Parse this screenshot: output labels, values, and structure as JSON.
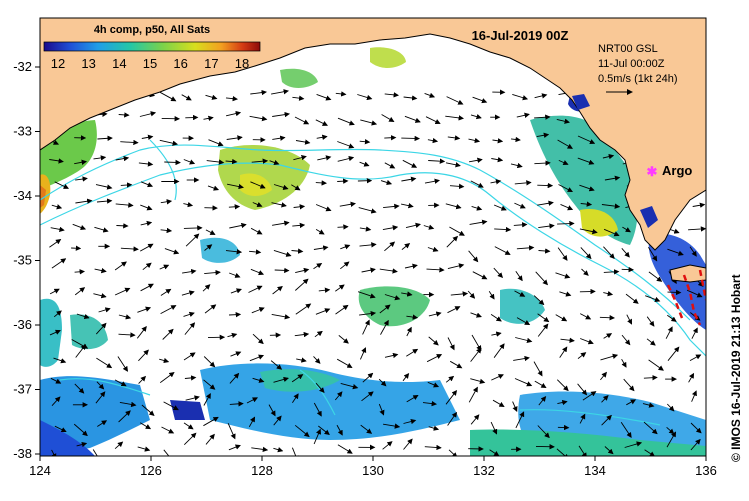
{
  "map": {
    "title": "16-Jul-2019 00Z",
    "credit": "© IMOS 16-Jul-2019 21:13 Hobart",
    "land_color": "#f9c896",
    "current_line_color": "#3cd6e6",
    "vector_color": "#000000",
    "x_ticks": [
      "124",
      "126",
      "128",
      "130",
      "132",
      "134",
      "136"
    ],
    "y_ticks": [
      "-32",
      "-33",
      "-34",
      "-35",
      "-36",
      "-37",
      "-38"
    ]
  },
  "legend": {
    "title": "4h comp, p50, All Sats",
    "ticks": [
      "12",
      "13",
      "14",
      "15",
      "16",
      "17",
      "18"
    ],
    "colormap": [
      "#1a0a8c",
      "#1f4fd6",
      "#1f9ee8",
      "#24c7a6",
      "#7bd24a",
      "#d8de1e",
      "#f3a020",
      "#d43a14",
      "#8c0a0a"
    ]
  },
  "reference": {
    "line1": "NRT00 GSL",
    "line2": "11-Jul 00:00Z",
    "line3": "0.5m/s (1kt 24h)"
  },
  "argo": {
    "label": "Argo",
    "marker_color": "#ff3cff"
  }
}
